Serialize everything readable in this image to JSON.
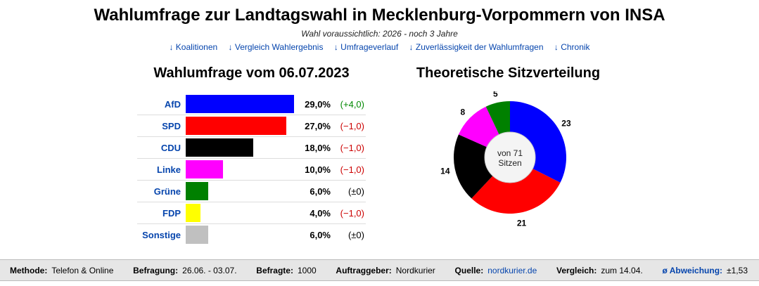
{
  "header": {
    "title": "Wahlumfrage zur Landtagswahl in Mecklenburg-Vorpommern von INSA",
    "subtitle": "Wahl voraussichtlich: 2026 - noch 3 Jahre"
  },
  "nav": [
    "↓ Koalitionen",
    "↓ Vergleich Wahlergebnis",
    "↓ Umfrageverlauf",
    "↓ Zuverlässigkeit der Wahlumfragen",
    "↓ Chronik"
  ],
  "poll_heading": "Wahlumfrage vom 06.07.2023",
  "seats_heading": "Theoretische Sitzverteilung",
  "chart_data": [
    {
      "type": "bar",
      "title": "Wahlumfrage vom 06.07.2023",
      "categories": [
        "AfD",
        "SPD",
        "CDU",
        "Linke",
        "Grüne",
        "FDP",
        "Sonstige"
      ],
      "values": [
        29.0,
        27.0,
        18.0,
        10.0,
        6.0,
        4.0,
        6.0
      ],
      "value_labels": [
        "29,0%",
        "27,0%",
        "18,0%",
        "10,0%",
        "6,0%",
        "4,0%",
        "6,0%"
      ],
      "changes": [
        "(+4,0)",
        "(−1,0)",
        "(−1,0)",
        "(−1,0)",
        "(±0)",
        "(−1,0)",
        "(±0)"
      ],
      "change_kind": [
        "up",
        "down",
        "down",
        "down",
        "zero",
        "down",
        "zero"
      ],
      "colors": [
        "#0000ff",
        "#ff0000",
        "#000000",
        "#ff00ff",
        "#008000",
        "#ffff00",
        "#c0c0c0"
      ],
      "xlim": [
        0,
        29
      ]
    },
    {
      "type": "pie",
      "title": "Theoretische Sitzverteilung",
      "categories": [
        "AfD",
        "SPD",
        "CDU",
        "Linke",
        "Grüne"
      ],
      "values": [
        23,
        21,
        14,
        8,
        5
      ],
      "colors": [
        "#0000ff",
        "#ff0000",
        "#000000",
        "#ff00ff",
        "#008000"
      ],
      "center_label_1": "von 71",
      "center_label_2": "Sitzen"
    }
  ],
  "footer": {
    "methode_label": "Methode:",
    "methode": "Telefon & Online",
    "befragung_label": "Befragung:",
    "befragung": "26.06. - 03.07.",
    "befragte_label": "Befragte:",
    "befragte": "1000",
    "auftraggeber_label": "Auftraggeber:",
    "auftraggeber": "Nordkurier",
    "quelle_label": "Quelle:",
    "quelle": "nordkurier.de",
    "vergleich_label": "Vergleich:",
    "vergleich": "zum 14.04.",
    "abweichung_label": "ø Abweichung:",
    "abweichung": "±1,53"
  }
}
